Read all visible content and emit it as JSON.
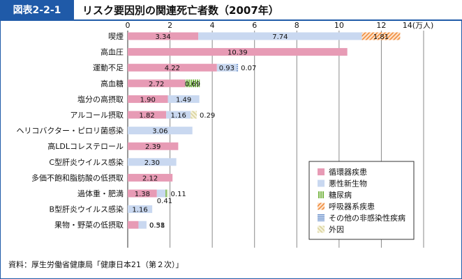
{
  "figure": {
    "label": "図表2-2-1",
    "title": "リスク要因別の関連死亡者数（2007年）",
    "source": "資料：厚生労働省健康局「健康日本21（第２次）」"
  },
  "colors": {
    "frame": "#1f5aa8",
    "circulatory": "#e79bb5",
    "malignant": "#c9d8f0",
    "diabetes": "#7ab648",
    "respiratory": "#f08c3c",
    "noncommunicable_other": "#6a8fc9",
    "external": "#d9d29a"
  },
  "chart_data": {
    "type": "bar",
    "orientation": "horizontal",
    "stacked": true,
    "unit": "(万人)",
    "xlim": [
      0,
      14
    ],
    "x_ticks": [
      "0",
      "2",
      "4",
      "6",
      "8",
      "10",
      "12",
      "14(万人)"
    ],
    "grid": true,
    "legend_position": "bottom-right",
    "categories": [
      "喫煙",
      "高血圧",
      "運動不足",
      "高血糖",
      "塩分の高摂取",
      "アルコール摂取",
      "ヘリコバクター・ピロリ菌感染",
      "高LDLコレステロール",
      "C型肝炎ウイルス感染",
      "多価不飽和脂肪酸の低摂取",
      "過体重・肥満",
      "B型肝炎ウイルス感染",
      "果物・野菜の低摂取"
    ],
    "series": [
      {
        "name": "循環器疾患",
        "key": "circulatory",
        "values": [
          3.34,
          10.39,
          4.22,
          2.72,
          1.9,
          1.82,
          0,
          2.39,
          0,
          2.12,
          1.38,
          0,
          0.51
        ]
      },
      {
        "name": "悪性新生物",
        "key": "malignant",
        "values": [
          7.74,
          0,
          0.93,
          0,
          1.49,
          1.16,
          3.06,
          0,
          2.3,
          0,
          0.41,
          1.16,
          0.38
        ]
      },
      {
        "name": "糖尿病",
        "key": "diabetes",
        "values": [
          0,
          0,
          0,
          0.69,
          0,
          0,
          0,
          0,
          0,
          0,
          0.11,
          0,
          0
        ]
      },
      {
        "name": "呼吸器系疾患",
        "key": "respiratory",
        "values": [
          1.81,
          0,
          0,
          0,
          0,
          0,
          0,
          0,
          0,
          0,
          0,
          0,
          0
        ]
      },
      {
        "name": "その他の非感染性疾病",
        "key": "noncommunicable_other",
        "values": [
          0,
          0,
          0.07,
          0,
          0,
          0,
          0,
          0,
          0,
          0,
          0,
          0,
          0
        ]
      },
      {
        "name": "外因",
        "key": "external",
        "values": [
          0,
          0,
          0,
          0,
          0,
          0.29,
          0,
          0,
          0,
          0,
          0,
          0,
          0
        ]
      }
    ],
    "data_labels": [
      [
        "3.34",
        "7.74",
        "1.81"
      ],
      [
        "10.39"
      ],
      [
        "4.22",
        "0.93",
        "0.07"
      ],
      [
        "2.72",
        "0.69"
      ],
      [
        "1.90",
        "1.49"
      ],
      [
        "1.82",
        "1.16",
        "0.29"
      ],
      [
        "3.06"
      ],
      [
        "2.39"
      ],
      [
        "2.30"
      ],
      [
        "2.12"
      ],
      [
        "1.38",
        "0.41",
        "0.11"
      ],
      [
        "1.16"
      ],
      [
        "0.51",
        "0.38"
      ]
    ]
  }
}
